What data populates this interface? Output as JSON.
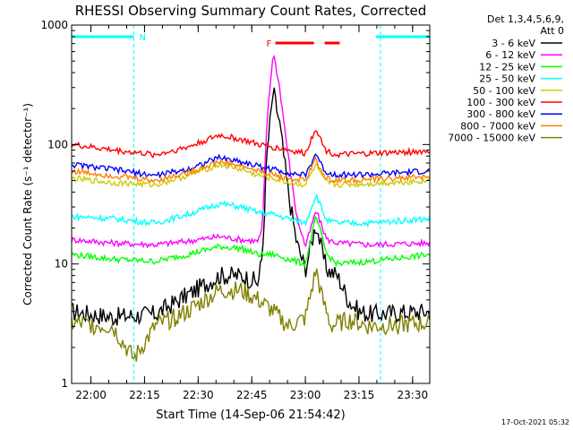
{
  "chart_data": {
    "type": "line",
    "title": "RHESSI Observing Summary Count Rates, Corrected",
    "xlabel": "Start Time (14-Sep-06 21:54:42)",
    "ylabel": "Corrected Count Rate (s⁻¹ detector⁻¹)",
    "yscale": "log",
    "ylim": [
      1,
      1000
    ],
    "xlim_minutes": [
      21.91,
      23.58
    ],
    "x_ticks": [
      "22:00",
      "22:15",
      "22:30",
      "22:45",
      "23:00",
      "23:15",
      "23:30"
    ],
    "y_ticks": [
      "1",
      "10",
      "100",
      "1000"
    ],
    "legend_header": [
      "Det 1,3,4,5,6,9,",
      "Att 0"
    ],
    "legend_position": "top-right",
    "flags": [
      {
        "label": "N",
        "color": "#00ffff",
        "segments": [
          [
            21.91,
            22.2
          ],
          [
            23.33,
            23.58
          ]
        ]
      },
      {
        "label": "F",
        "color": "#ff0000",
        "segments": [
          [
            22.86,
            23.04
          ],
          [
            23.09,
            23.16
          ]
        ]
      }
    ],
    "event_lines": [
      22.2,
      23.35
    ],
    "timestamp": "17-Oct-2021 05:32",
    "series": [
      {
        "name": "3 - 6 keV",
        "color": "#000000",
        "x": [
          21.91,
          22.1,
          22.3,
          22.45,
          22.6,
          22.7,
          22.78,
          22.8,
          22.82,
          22.85,
          22.88,
          22.92,
          22.96,
          23.0,
          23.05,
          23.08,
          23.1,
          23.15,
          23.2,
          23.25,
          23.3,
          23.58
        ],
        "values": [
          4,
          3.6,
          3.8,
          5.5,
          8,
          8,
          7,
          12,
          80,
          280,
          150,
          40,
          15,
          9,
          22,
          12,
          9,
          8,
          5,
          4,
          3.8,
          4
        ]
      },
      {
        "name": "6 - 12 keV",
        "color": "#ff00ff",
        "x": [
          21.91,
          22.1,
          22.3,
          22.45,
          22.6,
          22.7,
          22.78,
          22.8,
          22.82,
          22.85,
          22.88,
          22.92,
          22.96,
          23.0,
          23.05,
          23.08,
          23.1,
          23.15,
          23.3,
          23.58
        ],
        "values": [
          16,
          15,
          14.5,
          15.5,
          17,
          16,
          15.5,
          20,
          150,
          600,
          300,
          80,
          25,
          14,
          28,
          20,
          16,
          15,
          14.5,
          15
        ]
      },
      {
        "name": "12 - 25 keV",
        "color": "#00ff00",
        "x": [
          21.91,
          22.1,
          22.3,
          22.45,
          22.6,
          22.7,
          22.78,
          22.85,
          22.92,
          23.0,
          23.05,
          23.08,
          23.1,
          23.15,
          23.3,
          23.58
        ],
        "values": [
          12,
          11,
          10.5,
          12,
          14,
          13.5,
          12,
          12,
          11,
          10,
          25,
          16,
          12,
          10,
          10.5,
          12
        ]
      },
      {
        "name": "25 - 50 keV",
        "color": "#00ffff",
        "x": [
          21.91,
          22.1,
          22.3,
          22.45,
          22.6,
          22.7,
          22.78,
          22.85,
          22.92,
          23.0,
          23.05,
          23.08,
          23.1,
          23.15,
          23.3,
          23.58
        ],
        "values": [
          25,
          24,
          22,
          26,
          32,
          30,
          27,
          26,
          24,
          22,
          38,
          28,
          23,
          22,
          22,
          24
        ]
      },
      {
        "name": "50 - 100 keV",
        "color": "#cccc00",
        "x": [
          21.91,
          22.1,
          22.3,
          22.45,
          22.6,
          22.7,
          22.78,
          22.85,
          22.92,
          23.0,
          23.05,
          23.08,
          23.1,
          23.15,
          23.3,
          23.58
        ],
        "values": [
          52,
          48,
          46,
          55,
          68,
          62,
          55,
          52,
          48,
          46,
          68,
          52,
          48,
          46,
          47,
          50
        ]
      },
      {
        "name": "100 - 300 keV",
        "color": "#ff0000",
        "x": [
          21.91,
          22.1,
          22.3,
          22.45,
          22.6,
          22.7,
          22.78,
          22.85,
          22.92,
          23.0,
          23.05,
          23.08,
          23.1,
          23.15,
          23.3,
          23.58
        ],
        "values": [
          100,
          90,
          82,
          95,
          120,
          110,
          100,
          95,
          90,
          84,
          140,
          100,
          88,
          82,
          84,
          88
        ]
      },
      {
        "name": "300 - 800 keV",
        "color": "#0000ff",
        "x": [
          21.91,
          22.1,
          22.3,
          22.45,
          22.6,
          22.7,
          22.78,
          22.85,
          22.92,
          23.0,
          23.05,
          23.08,
          23.1,
          23.15,
          23.3,
          23.58
        ],
        "values": [
          68,
          62,
          55,
          62,
          78,
          72,
          66,
          62,
          58,
          55,
          85,
          64,
          58,
          56,
          56,
          60
        ]
      },
      {
        "name": "800 - 7000 keV",
        "color": "#ff8000",
        "x": [
          21.91,
          22.1,
          22.3,
          22.45,
          22.6,
          22.7,
          22.78,
          22.85,
          22.92,
          23.0,
          23.05,
          23.08,
          23.1,
          23.15,
          23.3,
          23.58
        ],
        "values": [
          60,
          55,
          50,
          58,
          72,
          66,
          60,
          56,
          52,
          50,
          76,
          56,
          52,
          50,
          51,
          54
        ]
      },
      {
        "name": "7000 - 15000 keV",
        "color": "#808000",
        "x": [
          21.91,
          22.1,
          22.2,
          22.3,
          22.45,
          22.6,
          22.7,
          22.78,
          22.85,
          22.92,
          23.0,
          23.05,
          23.08,
          23.12,
          23.2,
          23.3,
          23.58
        ],
        "values": [
          3.2,
          3,
          1.6,
          3,
          4,
          6,
          6,
          5,
          4,
          3,
          3.5,
          9,
          5,
          3,
          3.4,
          3,
          3.2
        ]
      }
    ]
  }
}
